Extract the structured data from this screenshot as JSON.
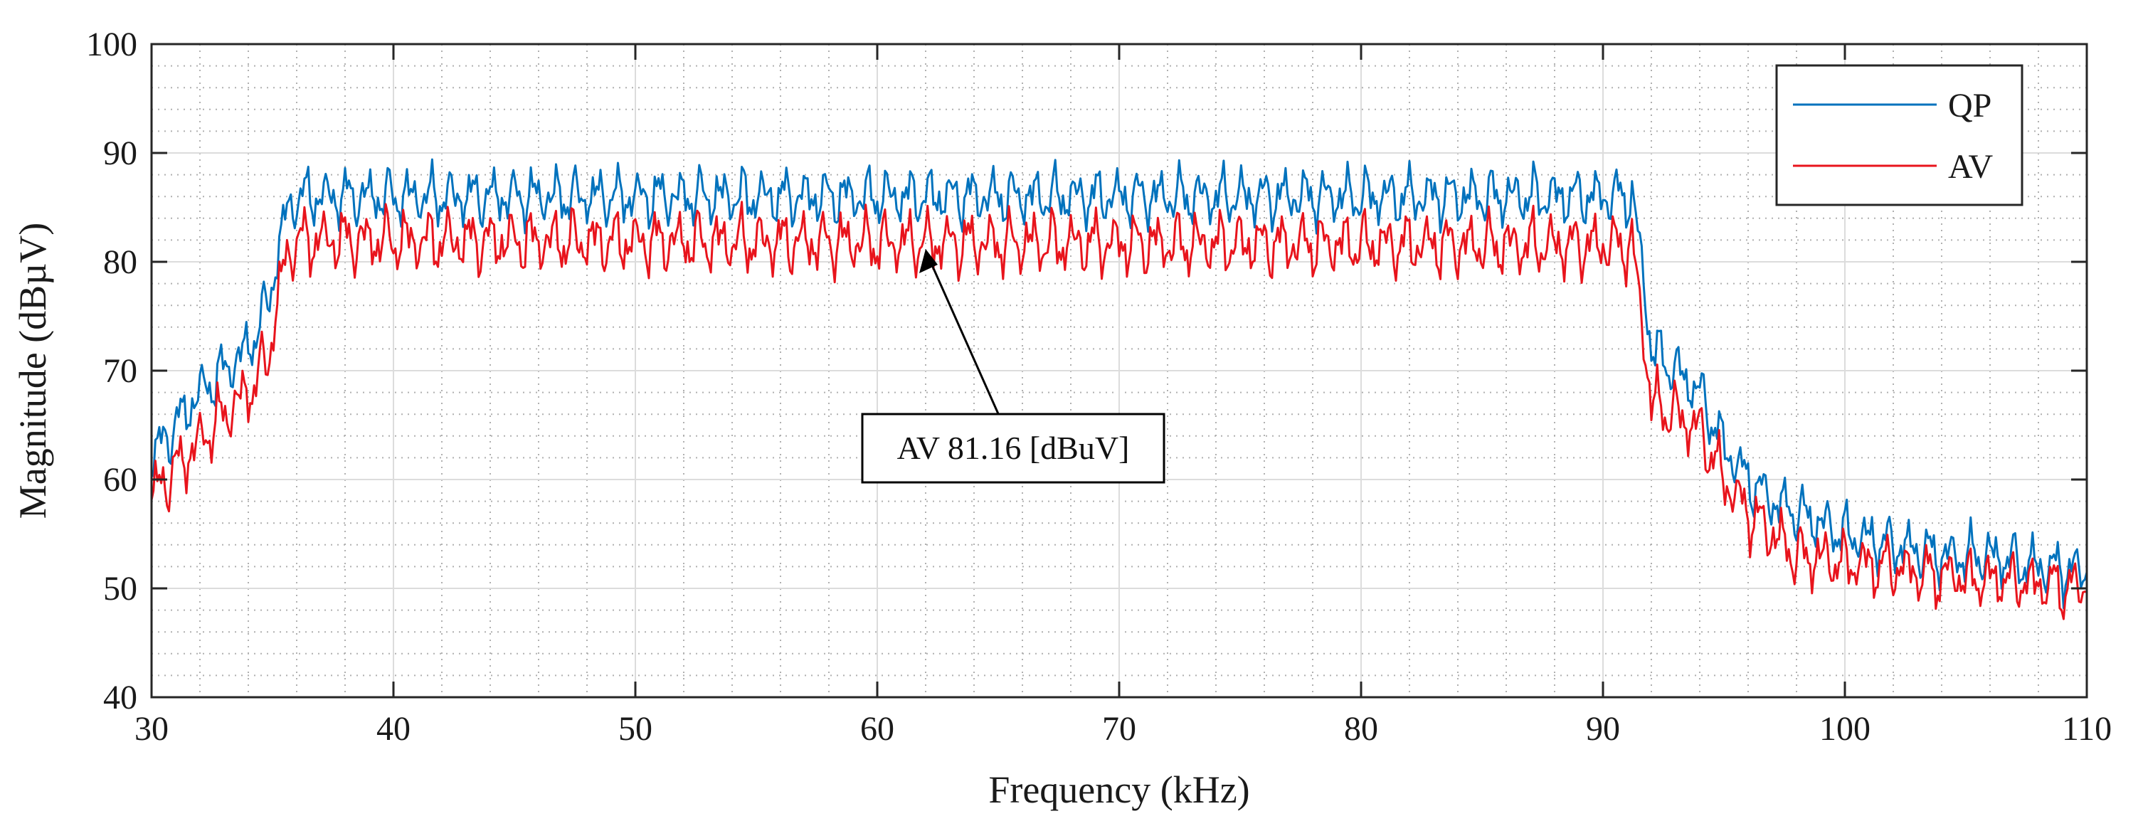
{
  "chart_data": {
    "type": "line",
    "title": "",
    "xlabel": "Frequency (kHz)",
    "ylabel": "Magnitude (dBµV)",
    "xlim": [
      30,
      110
    ],
    "ylim": [
      40,
      100
    ],
    "xticks": [
      30,
      40,
      50,
      60,
      70,
      80,
      90,
      100,
      110
    ],
    "yticks": [
      40,
      50,
      60,
      70,
      80,
      90,
      100
    ],
    "grid": "major and minor",
    "legend_position": "top-right",
    "series": [
      {
        "name": "QP",
        "color": "#0072BD",
        "profile": [
          [
            30,
            62
          ],
          [
            31,
            65
          ],
          [
            32,
            68
          ],
          [
            33,
            70
          ],
          [
            34,
            72
          ],
          [
            34.8,
            76
          ],
          [
            35.5,
            84
          ],
          [
            36,
            86
          ],
          [
            91.2,
            86
          ],
          [
            91.6,
            80
          ],
          [
            92,
            72
          ],
          [
            93,
            70
          ],
          [
            94,
            68
          ],
          [
            95,
            63
          ],
          [
            96,
            60
          ],
          [
            97,
            58
          ],
          [
            98,
            57
          ],
          [
            100,
            55
          ],
          [
            102,
            54
          ],
          [
            104,
            53
          ],
          [
            106,
            53
          ],
          [
            108,
            52
          ],
          [
            110,
            51.5
          ]
        ],
        "ripple_amplitude": 1.8
      },
      {
        "name": "AV",
        "color": "#E8141C",
        "profile": [
          [
            30,
            58.5
          ],
          [
            31,
            61
          ],
          [
            32,
            63.5
          ],
          [
            33,
            66
          ],
          [
            34,
            68
          ],
          [
            34.8,
            71
          ],
          [
            35.5,
            80
          ],
          [
            36,
            82
          ],
          [
            91.2,
            81.5
          ],
          [
            91.6,
            75
          ],
          [
            92,
            67
          ],
          [
            93,
            66
          ],
          [
            94,
            64.5
          ],
          [
            95,
            60
          ],
          [
            96,
            57
          ],
          [
            97,
            55
          ],
          [
            98,
            53
          ],
          [
            100,
            52.5
          ],
          [
            102,
            52
          ],
          [
            104,
            51.5
          ],
          [
            106,
            51
          ],
          [
            108,
            50.8
          ],
          [
            110,
            50.5
          ]
        ],
        "ripple_amplitude": 2.0
      }
    ],
    "annotations": [
      {
        "text": "AV 81.16 [dBuV]",
        "point": [
          61.8,
          81.16
        ],
        "label_position": "bottom-right of point"
      }
    ]
  }
}
